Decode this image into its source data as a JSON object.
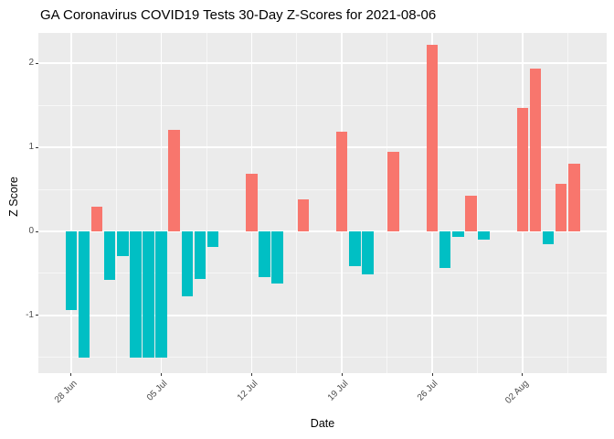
{
  "colors": {
    "positive_bar": "#F8766D",
    "negative_bar": "#00BFC4",
    "panel_background": "#EBEBEB",
    "gridline": "#FFFFFF",
    "tick_text": "#4D4D4D",
    "title_text": "#000000"
  },
  "chart_data": {
    "type": "bar",
    "title": "GA Coronavirus COVID19 Tests 30-Day Z-Scores for 2021-08-06",
    "xlabel": "Date",
    "ylabel": "Z Score",
    "ylim": [
      -1.685,
      2.359
    ],
    "grid": "on",
    "legend": "none",
    "y_major_ticks": [
      -1,
      0,
      1,
      2
    ],
    "y_tick_labels": [
      "-1",
      "0",
      "1",
      "2"
    ],
    "y_minor_ticks": [
      -1.5,
      -0.5,
      0.5,
      1.5
    ],
    "x_major_tick_days": [
      0,
      7,
      14,
      21,
      28,
      35
    ],
    "x_tick_labels": [
      "28 Jun",
      "05 Jul",
      "12 Jul",
      "19 Jul",
      "26 Jul",
      "02 Aug"
    ],
    "x_minor_tick_days": [
      3.5,
      10.5,
      17.5,
      24.5,
      31.5,
      38.5
    ],
    "bar_color_rule": "positive = salmon, negative = teal",
    "bars": [
      {
        "date": "28 Jun",
        "day": 0,
        "z": -0.94
      },
      {
        "date": "29 Jun",
        "day": 1,
        "z": -1.5
      },
      {
        "date": "30 Jun",
        "day": 2,
        "z": 0.29
      },
      {
        "date": "01 Jul",
        "day": 3,
        "z": -0.58
      },
      {
        "date": "02 Jul",
        "day": 4,
        "z": -0.29
      },
      {
        "date": "03 Jul",
        "day": 5,
        "z": -1.5
      },
      {
        "date": "04 Jul",
        "day": 6,
        "z": -1.5
      },
      {
        "date": "05 Jul",
        "day": 7,
        "z": -1.5
      },
      {
        "date": "06 Jul",
        "day": 8,
        "z": 1.21
      },
      {
        "date": "07 Jul",
        "day": 9,
        "z": -0.77
      },
      {
        "date": "08 Jul",
        "day": 10,
        "z": -0.57
      },
      {
        "date": "09 Jul",
        "day": 11,
        "z": -0.18
      },
      {
        "date": "12 Jul",
        "day": 14,
        "z": 0.69
      },
      {
        "date": "13 Jul",
        "day": 15,
        "z": -0.54
      },
      {
        "date": "14 Jul",
        "day": 16,
        "z": -0.62
      },
      {
        "date": "16 Jul",
        "day": 18,
        "z": 0.38
      },
      {
        "date": "19 Jul",
        "day": 21,
        "z": 1.19
      },
      {
        "date": "20 Jul",
        "day": 22,
        "z": -0.41
      },
      {
        "date": "21 Jul",
        "day": 23,
        "z": -0.51
      },
      {
        "date": "23 Jul",
        "day": 25,
        "z": 0.95
      },
      {
        "date": "26 Jul",
        "day": 28,
        "z": 2.22
      },
      {
        "date": "27 Jul",
        "day": 29,
        "z": -0.44
      },
      {
        "date": "28 Jul",
        "day": 30,
        "z": -0.06
      },
      {
        "date": "29 Jul",
        "day": 31,
        "z": 0.42
      },
      {
        "date": "30 Jul",
        "day": 32,
        "z": -0.1
      },
      {
        "date": "02 Aug",
        "day": 35,
        "z": 1.47
      },
      {
        "date": "03 Aug",
        "day": 36,
        "z": 1.93
      },
      {
        "date": "04 Aug",
        "day": 37,
        "z": -0.15
      },
      {
        "date": "05 Aug",
        "day": 38,
        "z": 0.56
      },
      {
        "date": "06 Aug",
        "day": 39,
        "z": 0.8
      }
    ]
  }
}
